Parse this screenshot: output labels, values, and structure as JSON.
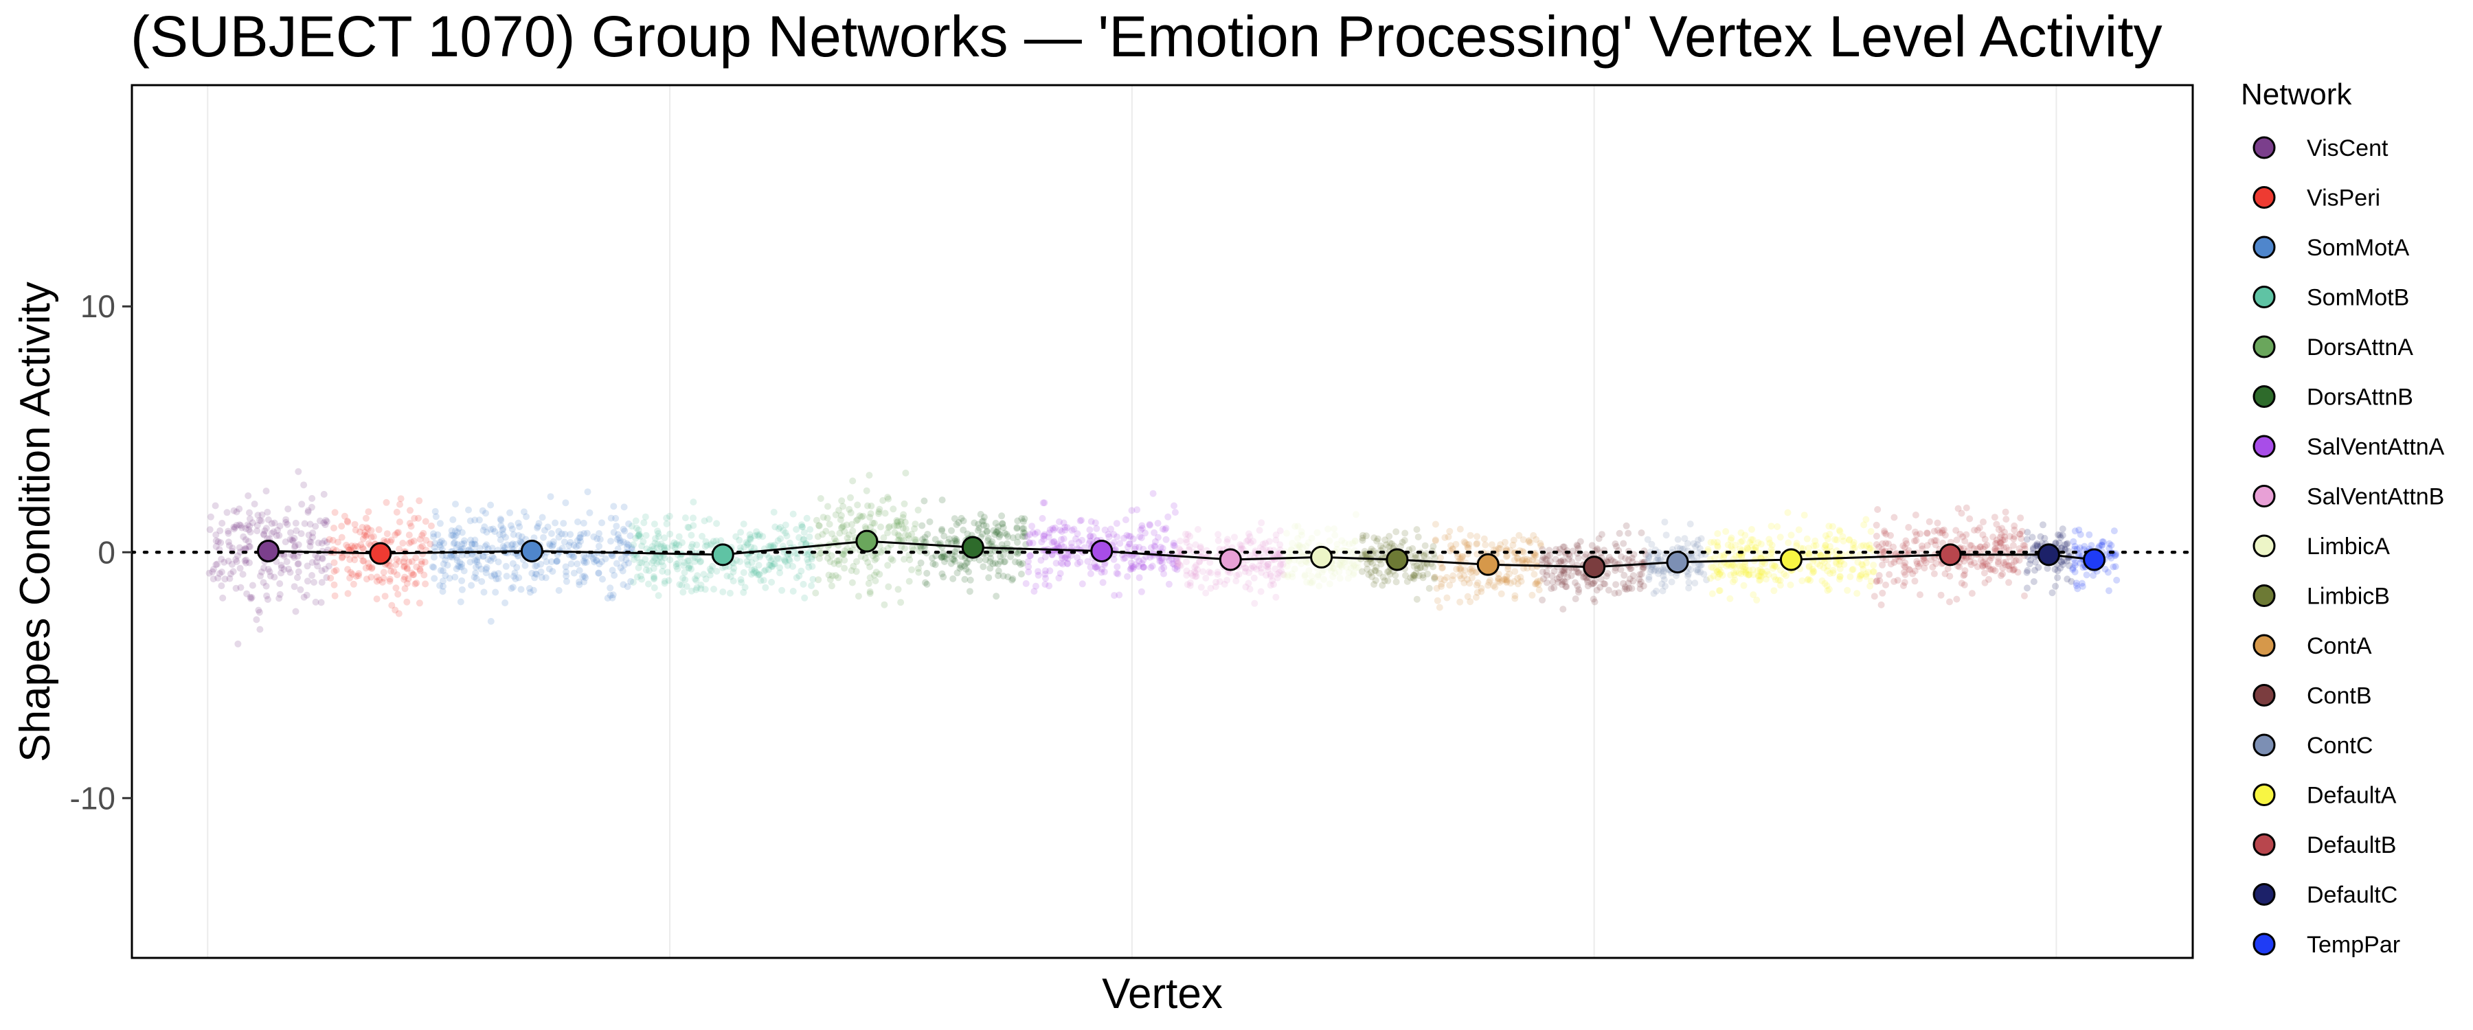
{
  "chart_data": {
    "type": "scatter",
    "title": "(SUBJECT 1070) Group Networks — 'Emotion Processing' Vertex Level Activity",
    "xlabel": "Vertex",
    "ylabel": "Shapes Condition Activity",
    "ylim": [
      -16.5,
      19
    ],
    "yticks": [
      -10,
      0,
      10
    ],
    "reference_line_y": 0,
    "grid": "vertical-major",
    "legend": {
      "title": "Network",
      "placement": "right"
    },
    "series": [
      {
        "name": "VisCent",
        "color": "#7b3f8c",
        "range": [
          1,
          5
        ],
        "mean": 0.05,
        "spread": 1.5
      },
      {
        "name": "VisPeri",
        "color": "#ee3b32",
        "range": [
          5,
          8.4
        ],
        "mean": -0.05,
        "spread": 1.2
      },
      {
        "name": "SomMotA",
        "color": "#4f86cc",
        "range": [
          8.4,
          15
        ],
        "mean": 0.05,
        "spread": 1.1
      },
      {
        "name": "SomMotB",
        "color": "#5fc3a4",
        "range": [
          15,
          21
        ],
        "mean": -0.1,
        "spread": 1.0
      },
      {
        "name": "DorsAttnA",
        "color": "#6aa65c",
        "range": [
          21,
          24.5
        ],
        "mean": 0.45,
        "spread": 1.3
      },
      {
        "name": "DorsAttnB",
        "color": "#2e6b2b",
        "range": [
          24.5,
          28
        ],
        "mean": 0.2,
        "spread": 1.0
      },
      {
        "name": "SalVentAttnA",
        "color": "#a84de8",
        "range": [
          28,
          33
        ],
        "mean": 0.05,
        "spread": 0.9
      },
      {
        "name": "SalVentAttnB",
        "color": "#e8a0d6",
        "range": [
          33,
          36.5
        ],
        "mean": -0.3,
        "spread": 0.8
      },
      {
        "name": "LimbicA",
        "color": "#edf5c7",
        "range": [
          36.5,
          39
        ],
        "mean": -0.2,
        "spread": 0.7
      },
      {
        "name": "LimbicB",
        "color": "#6d7a35",
        "range": [
          39,
          41.5
        ],
        "mean": -0.3,
        "spread": 0.7
      },
      {
        "name": "ContA",
        "color": "#d6984a",
        "range": [
          41.5,
          45
        ],
        "mean": -0.5,
        "spread": 0.9
      },
      {
        "name": "ContB",
        "color": "#7b3d3f",
        "range": [
          45,
          48.5
        ],
        "mean": -0.6,
        "spread": 0.8
      },
      {
        "name": "ContC",
        "color": "#7c8fb4",
        "range": [
          48.5,
          50.5
        ],
        "mean": -0.4,
        "spread": 0.8
      },
      {
        "name": "DefaultA",
        "color": "#f8f543",
        "range": [
          50.5,
          56
        ],
        "mean": -0.3,
        "spread": 0.8
      },
      {
        "name": "DefaultB",
        "color": "#b8464d",
        "range": [
          56,
          61
        ],
        "mean": -0.1,
        "spread": 0.9
      },
      {
        "name": "DefaultC",
        "color": "#1c2169",
        "range": [
          61,
          62.5
        ],
        "mean": -0.1,
        "spread": 0.8
      },
      {
        "name": "TempPar",
        "color": "#1f3cf5",
        "range": [
          62.5,
          64
        ],
        "mean": -0.3,
        "spread": 0.7
      }
    ]
  }
}
